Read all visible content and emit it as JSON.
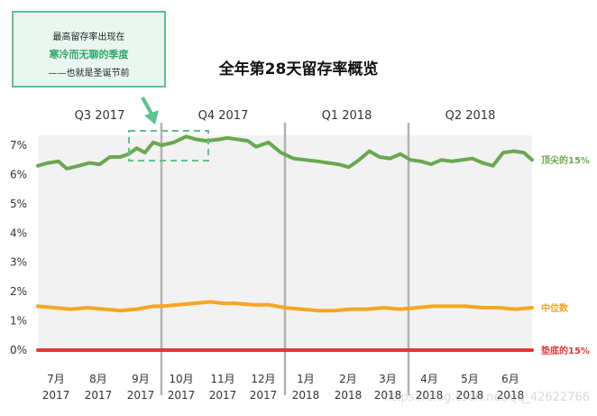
{
  "callout": {
    "line1": "最高留存率出现在",
    "line2": "寒冷而无聊的季度",
    "line3": "——也就是圣诞节前"
  },
  "watermark": "https://blog.csdn.net/qq_42622766",
  "colors": {
    "top": "#6aa84f",
    "median": "#f5a623",
    "bottom": "#e53935",
    "callout_border": "#5cc391",
    "plot_bg": "#f2f2f2"
  },
  "chart_data": {
    "type": "line",
    "title": "全年第28天留存率概览",
    "quarters": [
      "Q3 2017",
      "Q4 2017",
      "Q1 2018",
      "Q2 2018"
    ],
    "month_labels": [
      {
        "m": "7月",
        "y": "2017"
      },
      {
        "m": "8月",
        "y": "2017"
      },
      {
        "m": "9月",
        "y": "2017"
      },
      {
        "m": "10月",
        "y": "2017"
      },
      {
        "m": "11月",
        "y": "2017"
      },
      {
        "m": "12月",
        "y": "2017"
      },
      {
        "m": "1月",
        "y": "2018"
      },
      {
        "m": "2月",
        "y": "2018"
      },
      {
        "m": "3月",
        "y": "2018"
      },
      {
        "m": "4月",
        "y": "2018"
      },
      {
        "m": "5月",
        "y": "2018"
      },
      {
        "m": "6月",
        "y": "2018"
      }
    ],
    "y_ticks": [
      "0%",
      "1%",
      "2%",
      "3%",
      "4%",
      "5%",
      "6%",
      "7%"
    ],
    "ylim": [
      0,
      7.5
    ],
    "xlim": [
      0,
      12
    ],
    "grid": false,
    "series": [
      {
        "name": "顶尖的15%",
        "x": [
          0,
          0.25,
          0.5,
          0.7,
          1.0,
          1.25,
          1.5,
          1.75,
          2.0,
          2.2,
          2.4,
          2.6,
          2.8,
          3.0,
          3.3,
          3.6,
          3.85,
          4.1,
          4.4,
          4.6,
          4.85,
          5.1,
          5.3,
          5.6,
          5.9,
          6.2,
          6.5,
          6.8,
          7.05,
          7.3,
          7.55,
          7.8,
          8.05,
          8.3,
          8.55,
          8.8,
          9.05,
          9.3,
          9.55,
          9.8,
          10.05,
          10.3,
          10.55,
          10.8,
          11.05,
          11.3,
          11.55,
          11.8,
          12.0
        ],
        "values": [
          6.3,
          6.4,
          6.45,
          6.2,
          6.3,
          6.4,
          6.35,
          6.6,
          6.6,
          6.7,
          6.9,
          6.75,
          7.1,
          7.0,
          7.1,
          7.3,
          7.2,
          7.15,
          7.2,
          7.25,
          7.2,
          7.15,
          6.95,
          7.1,
          6.75,
          6.55,
          6.5,
          6.45,
          6.4,
          6.35,
          6.25,
          6.5,
          6.8,
          6.6,
          6.55,
          6.7,
          6.5,
          6.45,
          6.35,
          6.5,
          6.45,
          6.5,
          6.55,
          6.4,
          6.3,
          6.75,
          6.8,
          6.75,
          6.5
        ]
      },
      {
        "name": "中位数",
        "x": [
          0,
          0.4,
          0.8,
          1.2,
          1.6,
          2.0,
          2.4,
          2.8,
          3.0,
          3.4,
          3.8,
          4.2,
          4.5,
          4.8,
          5.2,
          5.6,
          6.0,
          6.4,
          6.8,
          7.2,
          7.6,
          8.0,
          8.4,
          8.8,
          9.2,
          9.6,
          10.0,
          10.4,
          10.8,
          11.2,
          11.6,
          12.0
        ],
        "values": [
          1.5,
          1.45,
          1.4,
          1.45,
          1.4,
          1.35,
          1.4,
          1.5,
          1.5,
          1.55,
          1.6,
          1.65,
          1.6,
          1.6,
          1.55,
          1.55,
          1.45,
          1.4,
          1.35,
          1.35,
          1.4,
          1.4,
          1.45,
          1.4,
          1.45,
          1.5,
          1.5,
          1.5,
          1.45,
          1.45,
          1.4,
          1.45
        ]
      },
      {
        "name": "垫底的15%",
        "x": [
          0,
          12
        ],
        "values": [
          0,
          0
        ]
      }
    ]
  }
}
